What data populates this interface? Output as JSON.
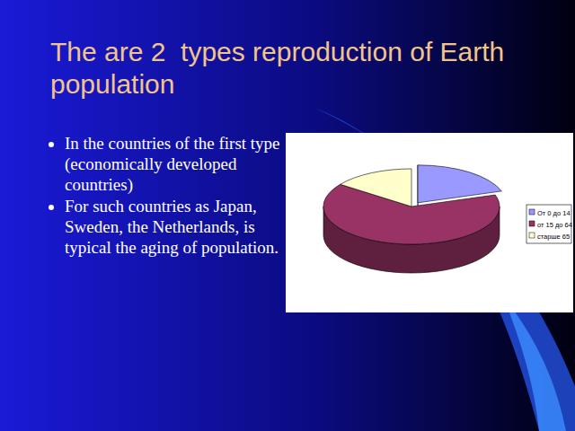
{
  "slide": {
    "title": "The are 2  types reproduction of Earth   population",
    "bullets": [
      "In the countries of the first type (economically developed countries)",
      "For such countries as Japan, Sweden, the Netherlands, is typical the aging  of population."
    ]
  },
  "chart_data": {
    "type": "pie",
    "categories": [
      "От 0 до 14",
      "от 15 до 64",
      "старше 65"
    ],
    "values": [
      20,
      65,
      15
    ],
    "colors": [
      "#9999ff",
      "#993366",
      "#ffffcc"
    ],
    "legend": "right"
  }
}
